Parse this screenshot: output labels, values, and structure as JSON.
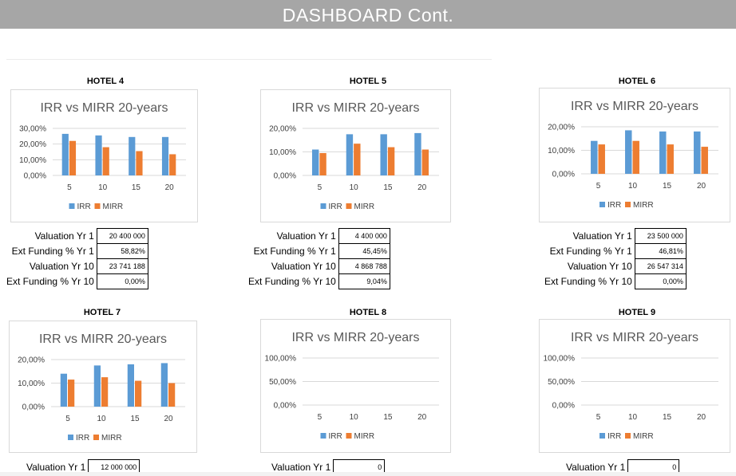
{
  "header": {
    "title": "DASHBOARD Cont."
  },
  "chart_data": [
    {
      "hotel": "HOTEL 4",
      "type": "bar",
      "title": "IRR vs MIRR 20-years",
      "categories": [
        "5",
        "10",
        "15",
        "20"
      ],
      "ylim": [
        0,
        30
      ],
      "yticks": [
        "30,00%",
        "20,00%",
        "10,00%",
        "0,00%"
      ],
      "series": [
        {
          "name": "IRR",
          "values": [
            26.5,
            25.5,
            24.5,
            24.5
          ]
        },
        {
          "name": "MIRR",
          "values": [
            22,
            18,
            15.5,
            13.5
          ]
        }
      ],
      "legend": "bottom",
      "grid": true
    },
    {
      "hotel": "HOTEL 5",
      "type": "bar",
      "title": "IRR vs MIRR 20-years",
      "categories": [
        "5",
        "10",
        "15",
        "20"
      ],
      "ylim": [
        0,
        20
      ],
      "yticks": [
        "20,00%",
        "10,00%",
        "0,00%"
      ],
      "series": [
        {
          "name": "IRR",
          "values": [
            11,
            17.5,
            17.5,
            18
          ]
        },
        {
          "name": "MIRR",
          "values": [
            9.5,
            13.5,
            12,
            11
          ]
        }
      ],
      "legend": "bottom",
      "grid": true
    },
    {
      "hotel": "HOTEL 6",
      "type": "bar",
      "title": "IRR vs MIRR 20-years",
      "categories": [
        "5",
        "10",
        "15",
        "20"
      ],
      "ylim": [
        0,
        20
      ],
      "yticks": [
        "20,00%",
        "10,00%",
        "0,00%"
      ],
      "series": [
        {
          "name": "IRR",
          "values": [
            14,
            18.5,
            18,
            18
          ]
        },
        {
          "name": "MIRR",
          "values": [
            12.5,
            14,
            12.5,
            11.5
          ]
        }
      ],
      "legend": "bottom",
      "grid": true
    },
    {
      "hotel": "HOTEL 7",
      "type": "bar",
      "title": "IRR vs MIRR 20-years",
      "categories": [
        "5",
        "10",
        "15",
        "20"
      ],
      "ylim": [
        0,
        20
      ],
      "yticks": [
        "20,00%",
        "10,00%",
        "0,00%"
      ],
      "series": [
        {
          "name": "IRR",
          "values": [
            14,
            17.5,
            18,
            18.5
          ]
        },
        {
          "name": "MIRR",
          "values": [
            11.5,
            12.5,
            11,
            10
          ]
        }
      ],
      "legend": "bottom",
      "grid": true
    },
    {
      "hotel": "HOTEL 8",
      "type": "bar",
      "title": "IRR vs MIRR 20-years",
      "categories": [
        "5",
        "10",
        "15",
        "20"
      ],
      "ylim": [
        0,
        100
      ],
      "yticks": [
        "100,00%",
        "50,00%",
        "0,00%"
      ],
      "series": [
        {
          "name": "IRR",
          "values": [
            0,
            0,
            0,
            0
          ]
        },
        {
          "name": "MIRR",
          "values": [
            0,
            0,
            0,
            0
          ]
        }
      ],
      "legend": "bottom",
      "grid": true
    },
    {
      "hotel": "HOTEL 9",
      "type": "bar",
      "title": "IRR vs MIRR 20-years",
      "categories": [
        "5",
        "10",
        "15",
        "20"
      ],
      "ylim": [
        0,
        100
      ],
      "yticks": [
        "100,00%",
        "50,00%",
        "0,00%"
      ],
      "series": [
        {
          "name": "IRR",
          "values": [
            0,
            0,
            0,
            0
          ]
        },
        {
          "name": "MIRR",
          "values": [
            0,
            0,
            0,
            0
          ]
        }
      ],
      "legend": "bottom",
      "grid": true
    }
  ],
  "metrics": [
    {
      "rows": [
        {
          "label": "Valuation Yr 1",
          "value": "20 400 000"
        },
        {
          "label": "Ext Funding % Yr 1",
          "value": "58,82%"
        },
        {
          "label": "Valuation Yr 10",
          "value": "23 741 188"
        },
        {
          "label": "Ext Funding % Yr 10",
          "value": "0,00%"
        }
      ]
    },
    {
      "rows": [
        {
          "label": "Valuation Yr 1",
          "value": "4 400 000"
        },
        {
          "label": "Ext Funding % Yr 1",
          "value": "45,45%"
        },
        {
          "label": "Valuation Yr 10",
          "value": "4 868 788"
        },
        {
          "label": "Ext Funding % Yr 10",
          "value": "9,04%"
        }
      ]
    },
    {
      "rows": [
        {
          "label": "Valuation Yr 1",
          "value": "23 500 000"
        },
        {
          "label": "Ext Funding % Yr 1",
          "value": "46,81%"
        },
        {
          "label": "Valuation Yr 10",
          "value": "26 547 314"
        },
        {
          "label": "Ext Funding % Yr 10",
          "value": "0,00%"
        }
      ]
    },
    {
      "rows": [
        {
          "label": "Valuation Yr 1",
          "value": "12 000 000"
        }
      ]
    },
    {
      "rows": [
        {
          "label": "Valuation Yr 1",
          "value": "0"
        }
      ]
    },
    {
      "rows": [
        {
          "label": "Valuation Yr 1",
          "value": "0"
        }
      ]
    }
  ],
  "colors": {
    "irr": "#5b9bd5",
    "mirr": "#ed7d31",
    "header_bg": "#a6a6a6",
    "grid": "#d9d9d9"
  }
}
